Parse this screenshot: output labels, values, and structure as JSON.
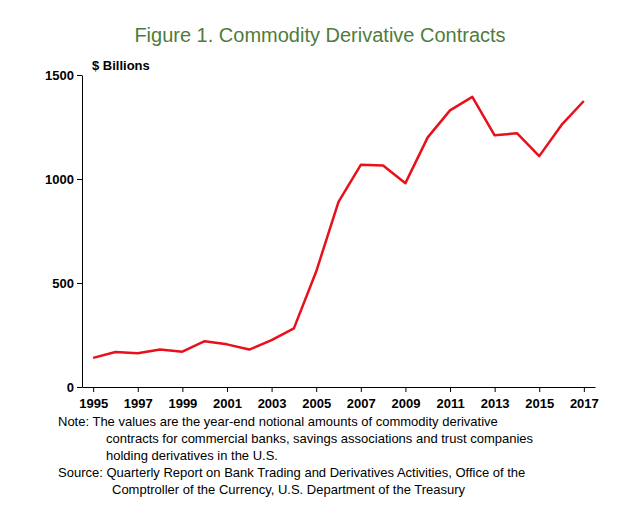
{
  "chart_data": {
    "type": "line",
    "title": "Figure 1. Commodity Derivative Contracts",
    "y_label": "$ Billions",
    "x": [
      1995,
      1996,
      1997,
      1998,
      1999,
      2000,
      2001,
      2002,
      2003,
      2004,
      2005,
      2006,
      2007,
      2008,
      2009,
      2010,
      2011,
      2012,
      2013,
      2014,
      2015,
      2016,
      2017
    ],
    "values": [
      140,
      168,
      162,
      180,
      170,
      220,
      205,
      180,
      225,
      282,
      555,
      890,
      1068,
      1065,
      980,
      1200,
      1330,
      1395,
      1210,
      1220,
      1110,
      1260,
      1375
    ],
    "color": "#e8101a",
    "xlim": [
      1994.5,
      2017.5
    ],
    "xticks": [
      1995,
      1997,
      1999,
      2001,
      2003,
      2005,
      2007,
      2009,
      2011,
      2013,
      2015,
      2017
    ],
    "ylim": [
      0,
      1500
    ],
    "yticks": [
      0,
      500,
      1000,
      1500
    ],
    "grid": false,
    "note": [
      "Note: The values are the year-end notional amounts of commodity derivative",
      "contracts for commercial banks, savings associations and trust companies",
      "holding derivatives in the U.S."
    ],
    "source": [
      "Source: Quarterly Report on Bank Trading and Derivatives Activities, Office of the",
      "Comptroller of the Currency, U.S. Department of the Treasury"
    ]
  }
}
